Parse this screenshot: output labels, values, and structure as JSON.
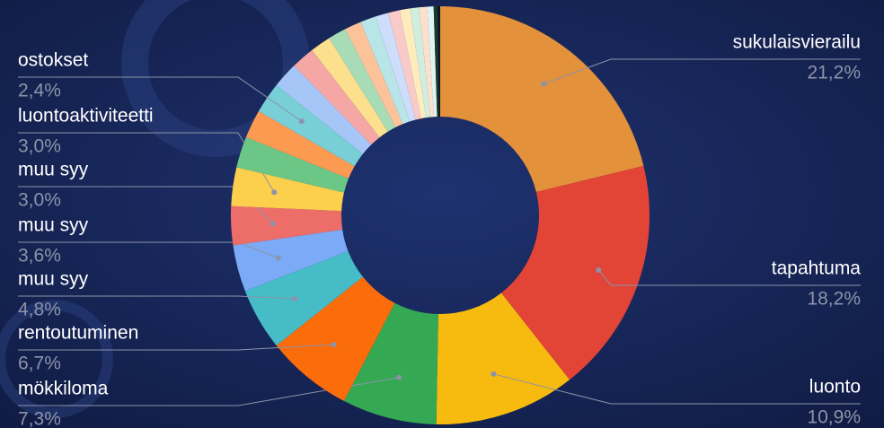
{
  "chart_data": {
    "type": "donut",
    "categories": [
      "sukulaisvierailu",
      "tapahtuma",
      "luonto",
      "mökkiloma",
      "rentoutuminen",
      "muu syy",
      "muu syy",
      "muu syy",
      "luontoaktiviteetti",
      null,
      null,
      "ostokset",
      null,
      null,
      null,
      null,
      null,
      null,
      null,
      null,
      null,
      null,
      null,
      null,
      null,
      null
    ],
    "values": [
      21.2,
      18.2,
      10.9,
      7.3,
      6.7,
      4.8,
      3.6,
      3.0,
      3.0,
      2.4,
      2.2,
      2.4,
      2.0,
      1.8,
      1.6,
      1.4,
      1.3,
      1.2,
      1.0,
      0.9,
      0.8,
      0.7,
      0.6,
      0.5,
      0.3,
      0.2
    ],
    "value_labels": [
      "21,2%",
      "18,2%",
      "10,9%",
      "7,3%",
      "6,7%",
      "4,8%",
      "3,6%",
      "3,0%",
      "3,0%",
      null,
      null,
      "2,4%",
      null,
      null,
      null,
      null,
      null,
      null,
      null,
      null,
      null,
      null,
      null,
      null,
      null,
      null
    ],
    "colors": [
      "#e3913a",
      "#e24436",
      "#f7bb0f",
      "#34a853",
      "#fb6c0b",
      "#45bcc6",
      "#7baaf6",
      "#ed6e69",
      "#fccf4c",
      "#6cc787",
      "#fc9a52",
      "#78cfd6",
      "#a7c6f8",
      "#f4a7a4",
      "#fde08e",
      "#a8dcb7",
      "#fcc39b",
      "#b8e5e8",
      "#cdddfa",
      "#f8cbc9",
      "#feecbd",
      "#cfeedd",
      "#fde0cc",
      "#e0f3f4",
      "#1a3a2a",
      "#0c1428"
    ]
  }
}
